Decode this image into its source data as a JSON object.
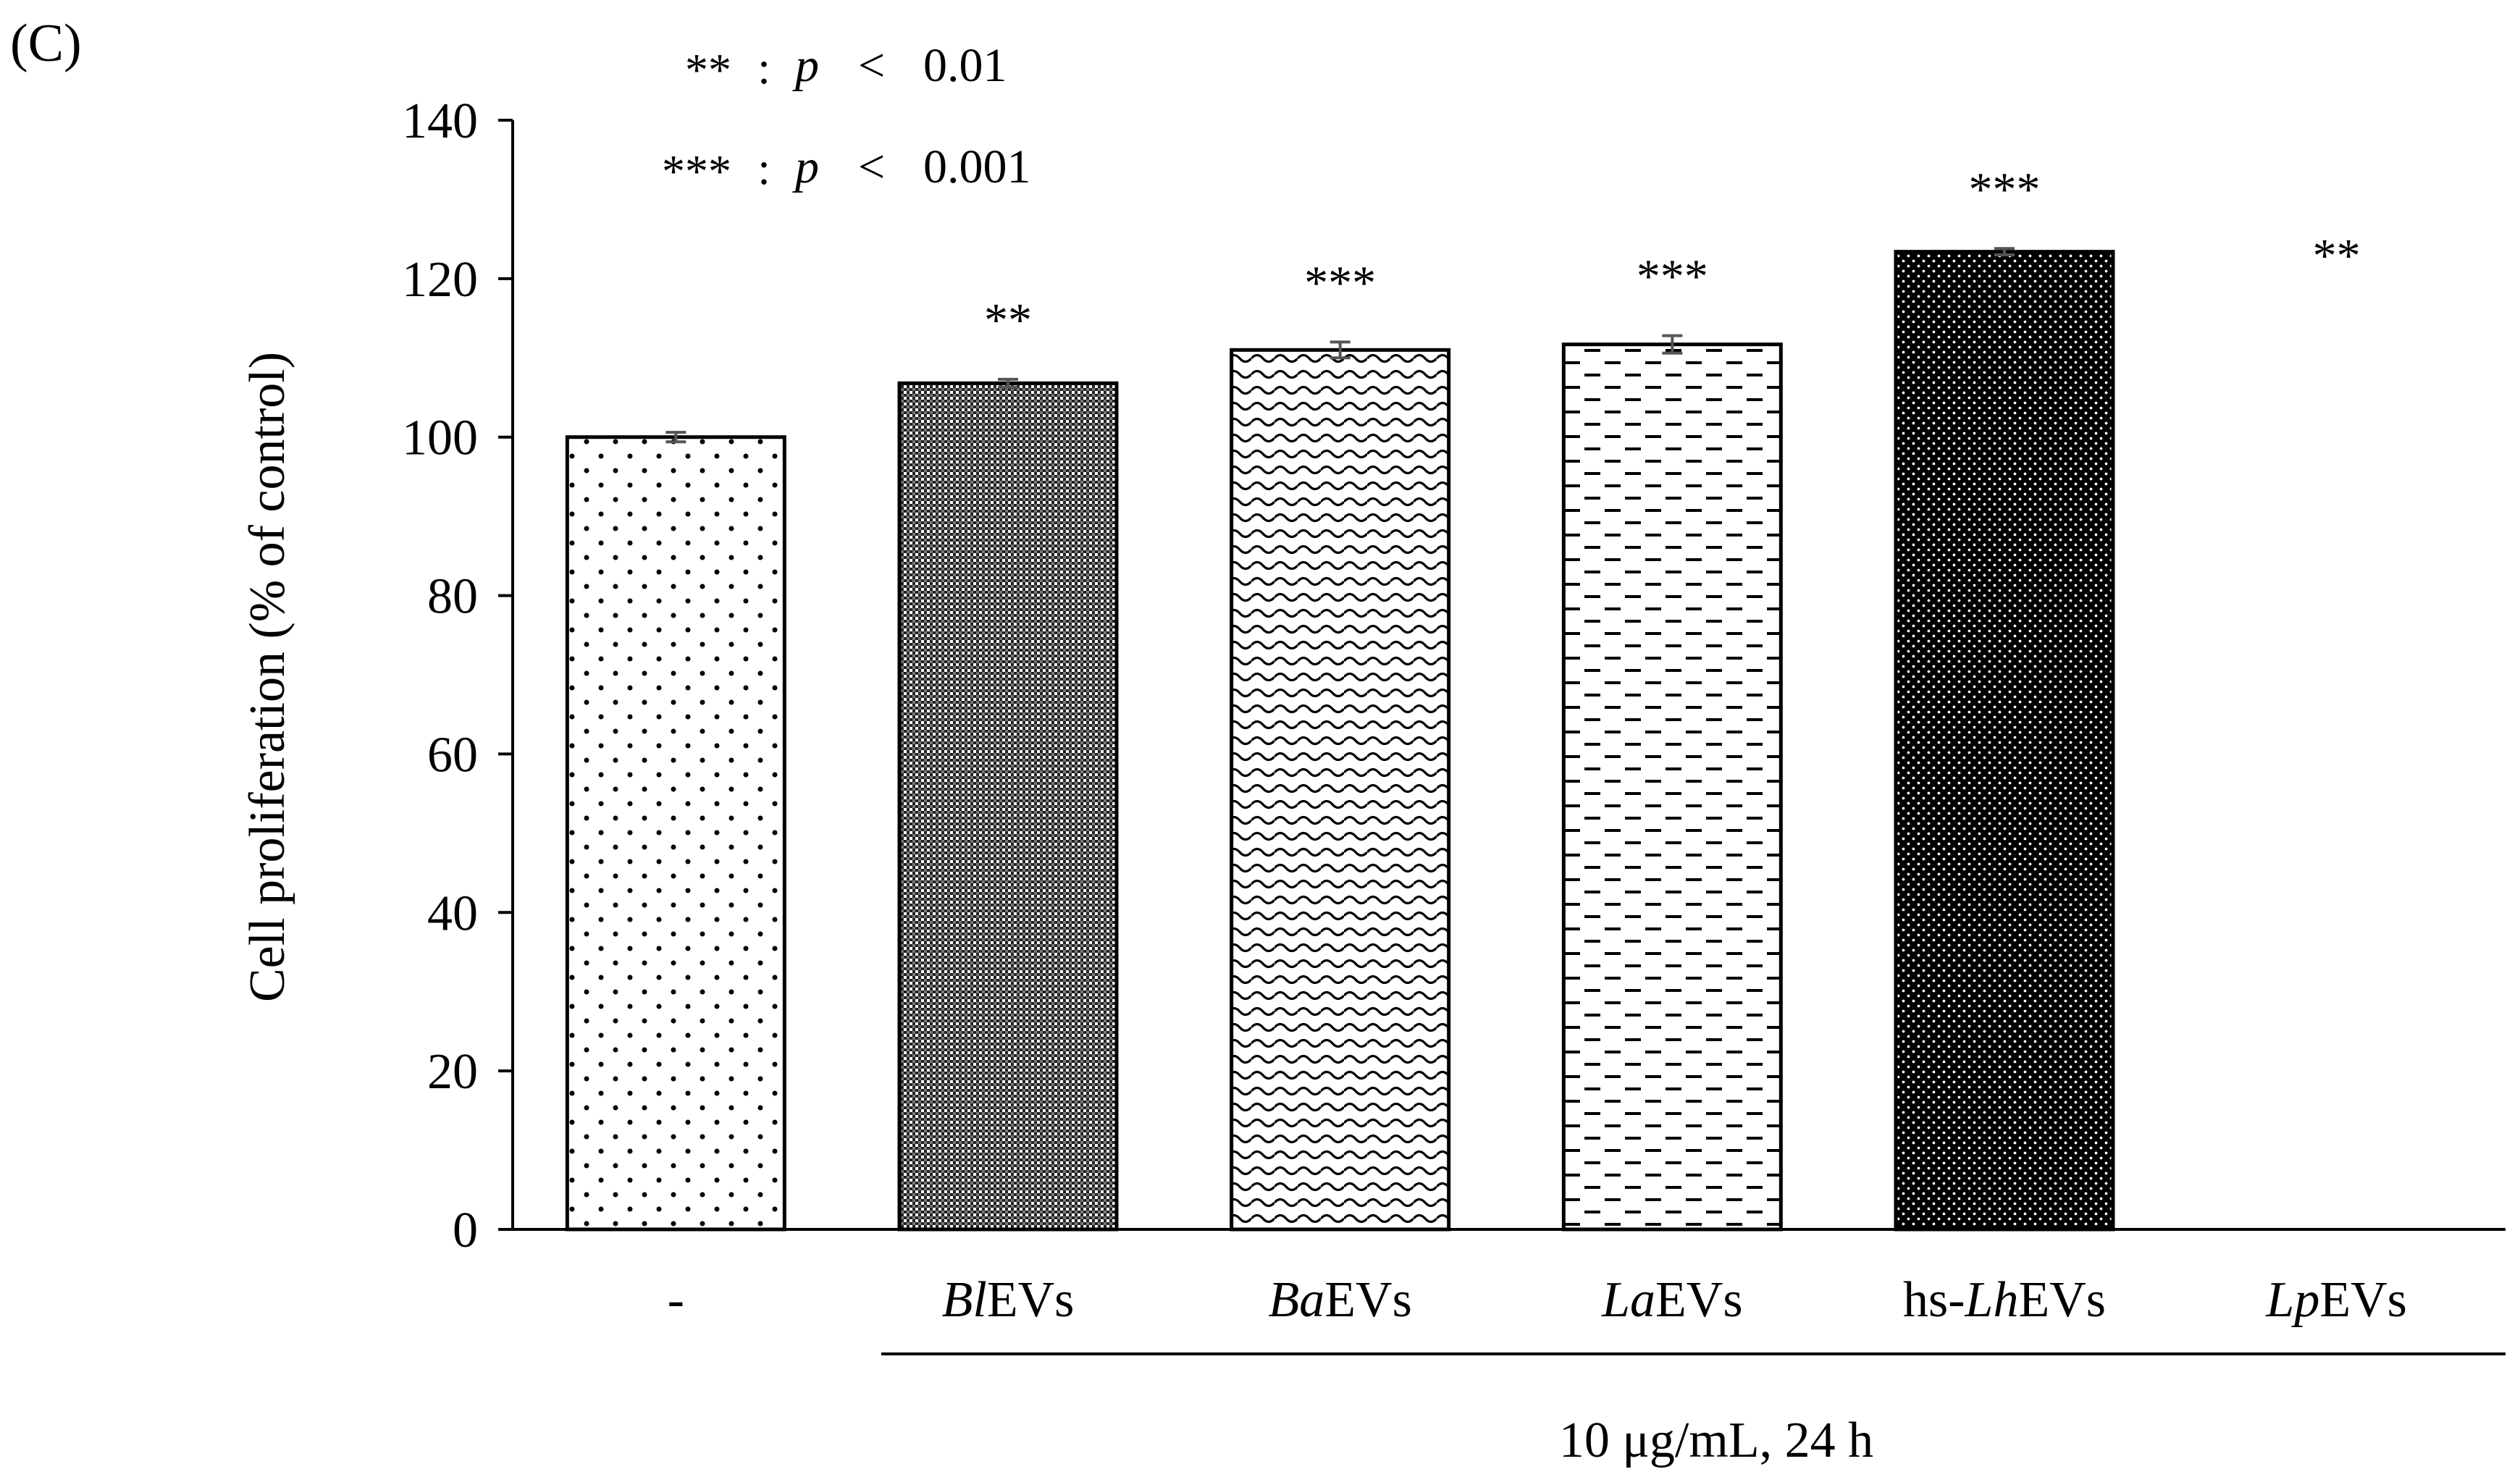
{
  "chart_data": {
    "type": "bar",
    "panel_label": "(C)",
    "title": "",
    "ylabel": "Cell proliferation (% of control)",
    "xlabel": "10 μg/mL, 24 h",
    "ylim": [
      0,
      140
    ],
    "y_ticks": [
      0,
      20,
      40,
      60,
      80,
      100,
      120,
      140
    ],
    "grid": false,
    "categories": [
      {
        "parts": [
          {
            "text": "-",
            "italic": false
          }
        ]
      },
      {
        "parts": [
          {
            "text": "Bl",
            "italic": true
          },
          {
            "text": "EVs",
            "italic": false
          }
        ]
      },
      {
        "parts": [
          {
            "text": "Ba",
            "italic": true
          },
          {
            "text": "EVs",
            "italic": false
          }
        ]
      },
      {
        "parts": [
          {
            "text": "La",
            "italic": true
          },
          {
            "text": "EVs",
            "italic": false
          }
        ]
      },
      {
        "parts": [
          {
            "text": "hs-",
            "italic": false
          },
          {
            "text": "Lh",
            "italic": true
          },
          {
            "text": "EVs",
            "italic": false
          }
        ]
      },
      {
        "parts": [
          {
            "text": "Lp",
            "italic": true
          },
          {
            "text": "EVs",
            "italic": false
          }
        ]
      }
    ],
    "values": [
      100,
      106.8,
      111.0,
      111.7,
      123.4,
      0
    ],
    "errors": [
      0.6,
      0.5,
      1.0,
      1.1,
      0.4,
      0
    ],
    "significance": [
      "",
      "**",
      "***",
      "***",
      "***",
      "**"
    ],
    "patterns": [
      "sparse-dots",
      "dense-checker",
      "waves",
      "dashes",
      "dark-dots",
      "none"
    ],
    "legend": {
      "entries": [
        {
          "stars": "**",
          "separator": ":",
          "p": "p",
          "comparator": "<",
          "threshold": "0.01"
        },
        {
          "stars": "***",
          "separator": ":",
          "p": "p",
          "comparator": "<",
          "threshold": "0.001"
        }
      ]
    }
  }
}
